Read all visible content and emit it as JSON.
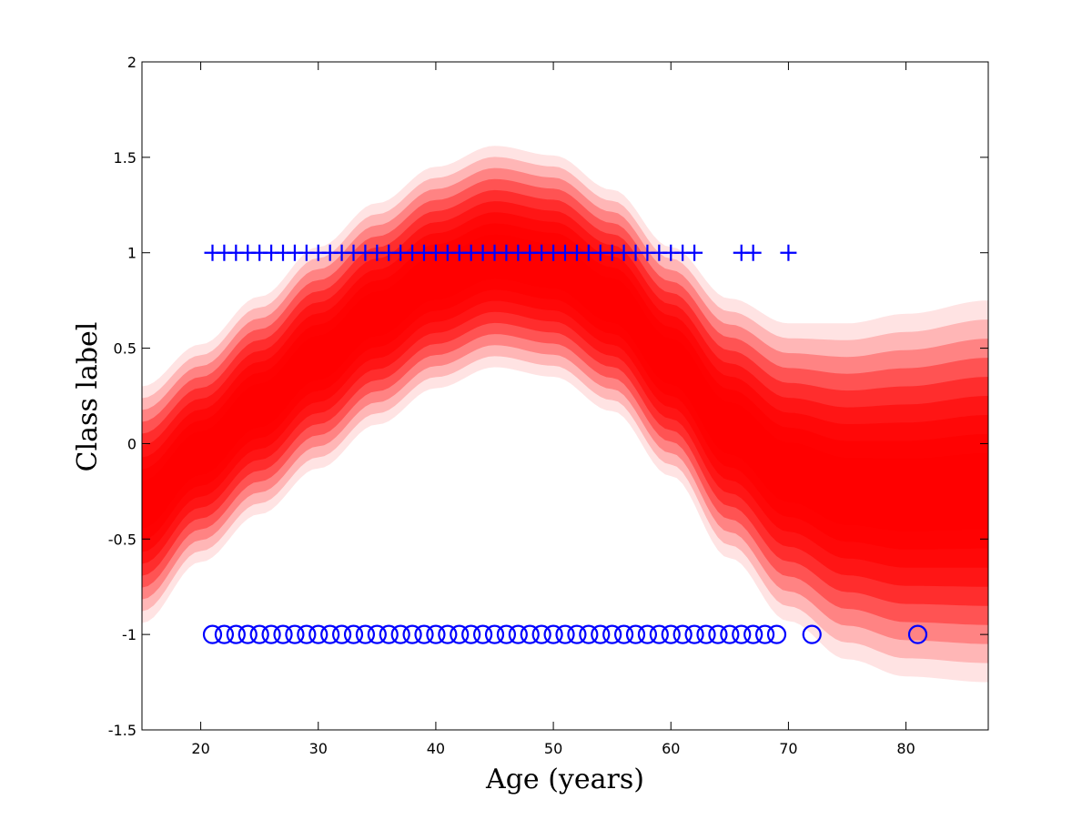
{
  "chart_data": {
    "type": "scatter",
    "title": "",
    "xlabel": "Age (years)",
    "ylabel": "Class label",
    "xlim": [
      15,
      87
    ],
    "ylim": [
      -1.5,
      2
    ],
    "xticks": [
      20,
      30,
      40,
      50,
      60,
      70,
      80
    ],
    "yticks": [
      -1.5,
      -1,
      -0.5,
      0,
      0.5,
      1,
      1.5,
      2
    ],
    "xtick_labels": [
      "20",
      "30",
      "40",
      "50",
      "60",
      "70",
      "80"
    ],
    "ytick_labels": [
      "-1.5",
      "-1",
      "-0.5",
      "0",
      "0.5",
      "1",
      "1.5",
      "2"
    ],
    "grid": false,
    "legend": "none",
    "colors": {
      "markers": "#0000ff",
      "band": "#ff0000",
      "axes": "#000000",
      "background": "#ffffff"
    },
    "band": {
      "description_of_fill": "posterior mean with graded red confidence bands",
      "x": [
        15,
        20,
        25,
        30,
        35,
        40,
        45,
        50,
        55,
        60,
        65,
        70,
        75,
        80,
        87
      ],
      "mean": [
        -0.32,
        -0.05,
        0.2,
        0.45,
        0.68,
        0.87,
        0.98,
        0.93,
        0.75,
        0.43,
        0.08,
        -0.15,
        -0.25,
        -0.27,
        -0.25
      ],
      "halfwidth": [
        0.62,
        0.57,
        0.57,
        0.58,
        0.58,
        0.58,
        0.58,
        0.58,
        0.58,
        0.6,
        0.68,
        0.78,
        0.88,
        0.95,
        1.0
      ],
      "levels": 10
    },
    "series": [
      {
        "marker": "plus",
        "y": 1,
        "x": [
          21,
          22,
          23,
          24,
          25,
          26,
          27,
          28,
          29,
          30,
          31,
          32,
          33,
          34,
          35,
          36,
          37,
          38,
          39,
          40,
          41,
          42,
          43,
          44,
          45,
          46,
          47,
          48,
          49,
          50,
          51,
          52,
          53,
          54,
          55,
          56,
          57,
          58,
          59,
          60,
          61,
          62,
          66,
          67,
          70
        ]
      },
      {
        "marker": "circle",
        "y": -1,
        "x": [
          21,
          22,
          23,
          24,
          25,
          26,
          27,
          28,
          29,
          30,
          31,
          32,
          33,
          34,
          35,
          36,
          37,
          38,
          39,
          40,
          41,
          42,
          43,
          44,
          45,
          46,
          47,
          48,
          49,
          50,
          51,
          52,
          53,
          54,
          55,
          56,
          57,
          58,
          59,
          60,
          61,
          62,
          63,
          64,
          65,
          66,
          67,
          68,
          69,
          72,
          81
        ]
      }
    ]
  }
}
